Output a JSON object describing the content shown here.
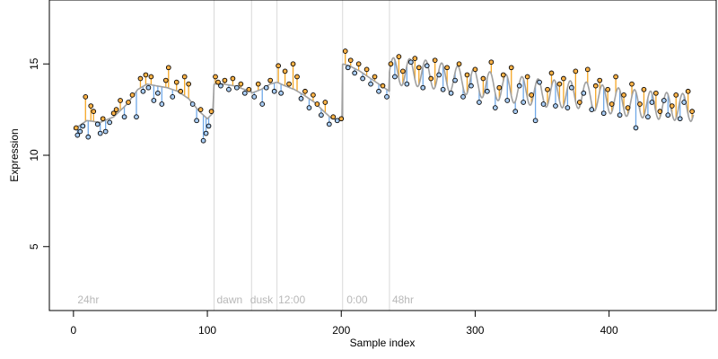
{
  "chart_data": {
    "type": "scatter",
    "title": "",
    "xlabel": "Sample index",
    "ylabel": "Expression",
    "xlim": [
      -18,
      480
    ],
    "ylim": [
      1.5,
      18.5
    ],
    "x_ticks": [
      0,
      100,
      200,
      300,
      400
    ],
    "y_ticks": [
      5,
      10,
      15
    ],
    "grid": false,
    "legend": "none",
    "colors": {
      "point_fill_above": "#ffb347",
      "point_fill_below": "#a9cdf5",
      "stem_above": "#f5a623",
      "stem_below": "#6fa8e8",
      "trend_line": "#a0a0a0",
      "phase_lines": "#d9d9d9",
      "phase_text": "#b8b8b8"
    },
    "phase_boundaries": [
      105,
      133,
      152,
      201,
      236
    ],
    "phase_labels": [
      {
        "x": 3,
        "text": "24hr"
      },
      {
        "x": 107,
        "text": "dawn"
      },
      {
        "x": 132,
        "text": "dusk"
      },
      {
        "x": 153,
        "text": "12:00"
      },
      {
        "x": 204,
        "text": "0:00"
      },
      {
        "x": 238,
        "text": "48hr"
      }
    ],
    "trend_segments": [
      {
        "x": [
          0,
          10,
          20,
          30,
          40,
          48,
          55,
          62,
          70,
          78,
          86,
          94,
          100,
          104
        ],
        "y": [
          11.4,
          11.9,
          11.8,
          12.1,
          12.8,
          13.6,
          13.9,
          13.8,
          13.7,
          13.5,
          13.1,
          12.4,
          12.0,
          12.3
        ]
      },
      {
        "x": [
          105,
          112,
          120,
          128,
          133
        ],
        "y": [
          13.9,
          13.9,
          13.8,
          13.6,
          13.5
        ]
      },
      {
        "x": [
          133,
          140,
          147,
          152
        ],
        "y": [
          13.4,
          13.6,
          13.9,
          14.0
        ]
      },
      {
        "x": [
          152,
          158,
          165,
          172,
          180,
          187,
          193,
          201
        ],
        "y": [
          14.0,
          13.8,
          13.6,
          13.3,
          12.9,
          12.4,
          12.0,
          11.9
        ]
      },
      {
        "x": [
          201,
          206,
          214,
          222,
          230,
          236
        ],
        "y": [
          15.0,
          14.9,
          14.6,
          14.2,
          13.8,
          13.5
        ]
      },
      {
        "x": [
          236,
          260,
          290,
          320,
          350,
          380,
          410,
          440,
          463
        ],
        "y": [
          14.6,
          14.5,
          14.1,
          13.7,
          13.4,
          13.3,
          12.9,
          12.7,
          12.6
        ]
      }
    ],
    "oscillation": {
      "x_start": 236,
      "x_end": 463,
      "period": 12,
      "amplitude": 0.75
    },
    "points": [
      {
        "x": 2,
        "y": 11.5
      },
      {
        "x": 3,
        "y": 11.1
      },
      {
        "x": 5,
        "y": 11.3
      },
      {
        "x": 7,
        "y": 11.6
      },
      {
        "x": 9,
        "y": 13.2
      },
      {
        "x": 11,
        "y": 11.0
      },
      {
        "x": 13,
        "y": 12.7
      },
      {
        "x": 15,
        "y": 12.4
      },
      {
        "x": 18,
        "y": 11.7
      },
      {
        "x": 20,
        "y": 11.2
      },
      {
        "x": 22,
        "y": 12.0
      },
      {
        "x": 24,
        "y": 11.3
      },
      {
        "x": 27,
        "y": 11.8
      },
      {
        "x": 30,
        "y": 12.3
      },
      {
        "x": 32,
        "y": 12.5
      },
      {
        "x": 35,
        "y": 13.0
      },
      {
        "x": 38,
        "y": 12.1
      },
      {
        "x": 41,
        "y": 12.9
      },
      {
        "x": 44,
        "y": 13.3
      },
      {
        "x": 47,
        "y": 12.1
      },
      {
        "x": 50,
        "y": 14.2
      },
      {
        "x": 52,
        "y": 13.5
      },
      {
        "x": 54,
        "y": 14.4
      },
      {
        "x": 56,
        "y": 13.7
      },
      {
        "x": 58,
        "y": 14.3
      },
      {
        "x": 60,
        "y": 13.0
      },
      {
        "x": 63,
        "y": 13.4
      },
      {
        "x": 66,
        "y": 12.8
      },
      {
        "x": 69,
        "y": 14.1
      },
      {
        "x": 71,
        "y": 14.8
      },
      {
        "x": 74,
        "y": 13.2
      },
      {
        "x": 77,
        "y": 14.0
      },
      {
        "x": 80,
        "y": 13.5
      },
      {
        "x": 83,
        "y": 14.3
      },
      {
        "x": 86,
        "y": 13.9
      },
      {
        "x": 89,
        "y": 12.8
      },
      {
        "x": 92,
        "y": 11.9
      },
      {
        "x": 95,
        "y": 12.5
      },
      {
        "x": 97,
        "y": 10.8
      },
      {
        "x": 99,
        "y": 11.2
      },
      {
        "x": 101,
        "y": 11.6
      },
      {
        "x": 103,
        "y": 12.4
      },
      {
        "x": 106,
        "y": 14.3
      },
      {
        "x": 108,
        "y": 14.0
      },
      {
        "x": 110,
        "y": 13.8
      },
      {
        "x": 113,
        "y": 14.1
      },
      {
        "x": 116,
        "y": 13.6
      },
      {
        "x": 119,
        "y": 14.2
      },
      {
        "x": 122,
        "y": 13.7
      },
      {
        "x": 125,
        "y": 13.9
      },
      {
        "x": 128,
        "y": 13.4
      },
      {
        "x": 131,
        "y": 13.6
      },
      {
        "x": 135,
        "y": 13.2
      },
      {
        "x": 138,
        "y": 13.9
      },
      {
        "x": 141,
        "y": 12.8
      },
      {
        "x": 144,
        "y": 13.7
      },
      {
        "x": 147,
        "y": 14.1
      },
      {
        "x": 150,
        "y": 13.5
      },
      {
        "x": 153,
        "y": 14.9
      },
      {
        "x": 155,
        "y": 13.4
      },
      {
        "x": 158,
        "y": 14.6
      },
      {
        "x": 161,
        "y": 13.9
      },
      {
        "x": 164,
        "y": 15.0
      },
      {
        "x": 167,
        "y": 14.3
      },
      {
        "x": 170,
        "y": 13.1
      },
      {
        "x": 173,
        "y": 13.5
      },
      {
        "x": 176,
        "y": 12.6
      },
      {
        "x": 179,
        "y": 13.3
      },
      {
        "x": 182,
        "y": 12.8
      },
      {
        "x": 185,
        "y": 12.2
      },
      {
        "x": 188,
        "y": 12.9
      },
      {
        "x": 191,
        "y": 11.7
      },
      {
        "x": 194,
        "y": 12.1
      },
      {
        "x": 197,
        "y": 11.9
      },
      {
        "x": 200,
        "y": 12.0
      },
      {
        "x": 203,
        "y": 15.7
      },
      {
        "x": 205,
        "y": 14.8
      },
      {
        "x": 207,
        "y": 15.2
      },
      {
        "x": 210,
        "y": 14.5
      },
      {
        "x": 213,
        "y": 15.0
      },
      {
        "x": 216,
        "y": 14.2
      },
      {
        "x": 219,
        "y": 14.7
      },
      {
        "x": 222,
        "y": 13.9
      },
      {
        "x": 225,
        "y": 14.3
      },
      {
        "x": 228,
        "y": 13.5
      },
      {
        "x": 231,
        "y": 13.8
      },
      {
        "x": 234,
        "y": 13.2
      },
      {
        "x": 237,
        "y": 15.0
      },
      {
        "x": 240,
        "y": 14.3
      },
      {
        "x": 243,
        "y": 15.4
      },
      {
        "x": 246,
        "y": 14.6
      },
      {
        "x": 249,
        "y": 13.9
      },
      {
        "x": 252,
        "y": 15.1
      },
      {
        "x": 255,
        "y": 15.3
      },
      {
        "x": 258,
        "y": 14.8
      },
      {
        "x": 261,
        "y": 13.7
      },
      {
        "x": 264,
        "y": 14.9
      },
      {
        "x": 267,
        "y": 14.2
      },
      {
        "x": 270,
        "y": 15.2
      },
      {
        "x": 273,
        "y": 14.4
      },
      {
        "x": 276,
        "y": 13.6
      },
      {
        "x": 279,
        "y": 14.8
      },
      {
        "x": 282,
        "y": 13.4
      },
      {
        "x": 285,
        "y": 14.1
      },
      {
        "x": 288,
        "y": 15.0
      },
      {
        "x": 291,
        "y": 13.2
      },
      {
        "x": 294,
        "y": 14.4
      },
      {
        "x": 297,
        "y": 13.8
      },
      {
        "x": 300,
        "y": 14.7
      },
      {
        "x": 303,
        "y": 12.9
      },
      {
        "x": 306,
        "y": 14.2
      },
      {
        "x": 309,
        "y": 13.5
      },
      {
        "x": 312,
        "y": 15.1
      },
      {
        "x": 315,
        "y": 12.6
      },
      {
        "x": 318,
        "y": 13.7
      },
      {
        "x": 321,
        "y": 14.4
      },
      {
        "x": 324,
        "y": 13.0
      },
      {
        "x": 327,
        "y": 14.8
      },
      {
        "x": 330,
        "y": 12.4
      },
      {
        "x": 333,
        "y": 13.8
      },
      {
        "x": 336,
        "y": 12.9
      },
      {
        "x": 339,
        "y": 14.3
      },
      {
        "x": 342,
        "y": 13.3
      },
      {
        "x": 345,
        "y": 11.9
      },
      {
        "x": 348,
        "y": 14.0
      },
      {
        "x": 351,
        "y": 12.8
      },
      {
        "x": 354,
        "y": 13.6
      },
      {
        "x": 357,
        "y": 14.5
      },
      {
        "x": 360,
        "y": 12.7
      },
      {
        "x": 363,
        "y": 13.9
      },
      {
        "x": 366,
        "y": 14.2
      },
      {
        "x": 369,
        "y": 12.6
      },
      {
        "x": 372,
        "y": 13.7
      },
      {
        "x": 375,
        "y": 14.6
      },
      {
        "x": 378,
        "y": 12.9
      },
      {
        "x": 381,
        "y": 13.4
      },
      {
        "x": 384,
        "y": 14.7
      },
      {
        "x": 387,
        "y": 12.5
      },
      {
        "x": 390,
        "y": 13.8
      },
      {
        "x": 393,
        "y": 14.1
      },
      {
        "x": 396,
        "y": 12.3
      },
      {
        "x": 399,
        "y": 13.6
      },
      {
        "x": 402,
        "y": 12.8
      },
      {
        "x": 405,
        "y": 14.3
      },
      {
        "x": 408,
        "y": 12.2
      },
      {
        "x": 411,
        "y": 13.3
      },
      {
        "x": 414,
        "y": 12.6
      },
      {
        "x": 417,
        "y": 13.9
      },
      {
        "x": 420,
        "y": 11.5
      },
      {
        "x": 423,
        "y": 12.8
      },
      {
        "x": 426,
        "y": 13.6
      },
      {
        "x": 429,
        "y": 12.1
      },
      {
        "x": 432,
        "y": 12.9
      },
      {
        "x": 435,
        "y": 13.4
      },
      {
        "x": 438,
        "y": 12.4
      },
      {
        "x": 441,
        "y": 13.0
      },
      {
        "x": 444,
        "y": 12.2
      },
      {
        "x": 447,
        "y": 12.7
      },
      {
        "x": 450,
        "y": 13.3
      },
      {
        "x": 453,
        "y": 12.0
      },
      {
        "x": 456,
        "y": 12.9
      },
      {
        "x": 459,
        "y": 13.5
      },
      {
        "x": 462,
        "y": 12.4
      }
    ]
  }
}
